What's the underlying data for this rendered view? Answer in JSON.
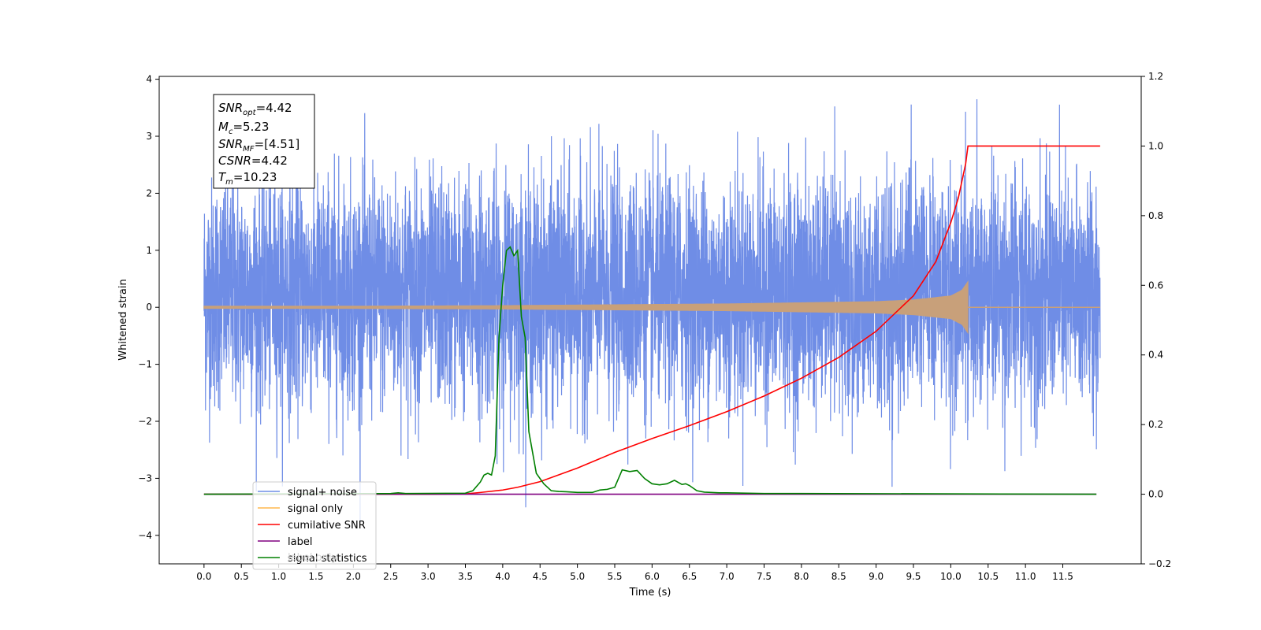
{
  "chart_data": {
    "type": "line",
    "xlabel": "Time (s)",
    "ylabel": "Whitened strain",
    "xlim": [
      -0.6,
      12.55
    ],
    "ylim": [
      -4.5,
      4.05
    ],
    "y2lim": [
      -0.2,
      1.2
    ],
    "xticks": [
      "0.0",
      "0.5",
      "1.0",
      "1.5",
      "2.0",
      "2.5",
      "3.0",
      "3.5",
      "4.0",
      "4.5",
      "5.0",
      "5.5",
      "6.0",
      "6.5",
      "7.0",
      "7.5",
      "8.0",
      "8.5",
      "9.0",
      "9.5",
      "10.0",
      "10.5",
      "11.0",
      "11.5"
    ],
    "yticks": [
      "4",
      "3",
      "2",
      "1",
      "0",
      "−1",
      "−2",
      "−3",
      "−4"
    ],
    "y2ticks": [
      "1.2",
      "1.0",
      "0.8",
      "0.6",
      "0.4",
      "0.2",
      "0.0",
      "−0.2"
    ],
    "annotation": {
      "snr_opt": "4.42",
      "mc": "5.23",
      "snr_mf": "[4.51]",
      "csnr": "4.42",
      "tm": "10.23"
    },
    "legend_position": "lower-left",
    "legend": [
      {
        "label": "signal+ noise",
        "color": "#6f8de6"
      },
      {
        "label": "signal only",
        "color": "#ffb74d"
      },
      {
        "label": "cumilative SNR",
        "color": "#ff0000"
      },
      {
        "label": "label",
        "color": "#800080"
      },
      {
        "label": "signal statistics",
        "color": "#008000"
      }
    ],
    "hidden_legend_label": "label only",
    "series": [
      {
        "name": "signal+ noise",
        "axis": "left",
        "color": "#6f8de6",
        "t_start": 0.0,
        "t_end": 12.0,
        "amplitude_range": [
          -4.1,
          3.65
        ]
      },
      {
        "name": "signal only",
        "axis": "left",
        "color": "#c8a07a",
        "t_merger": 10.23,
        "envelope": {
          "x": [
            0.0,
            2.0,
            4.0,
            6.0,
            7.0,
            8.0,
            9.0,
            9.5,
            10.0,
            10.15,
            10.23
          ],
          "y": [
            0.02,
            0.02,
            0.03,
            0.05,
            0.06,
            0.08,
            0.1,
            0.13,
            0.2,
            0.3,
            0.45
          ]
        }
      },
      {
        "name": "cumilative SNR",
        "axis": "right",
        "color": "#ff0000",
        "x": [
          0.0,
          3.0,
          3.5,
          3.7,
          4.0,
          4.2,
          4.5,
          5.0,
          5.5,
          6.0,
          6.5,
          7.0,
          7.5,
          8.0,
          8.5,
          9.0,
          9.5,
          9.8,
          10.0,
          10.1,
          10.2,
          10.23,
          12.0
        ],
        "y": [
          0.0,
          0.0,
          0.001,
          0.005,
          0.012,
          0.02,
          0.036,
          0.075,
          0.12,
          0.16,
          0.197,
          0.237,
          0.282,
          0.333,
          0.393,
          0.468,
          0.57,
          0.668,
          0.78,
          0.85,
          0.95,
          1.0,
          1.0
        ]
      },
      {
        "name": "label",
        "axis": "right",
        "color": "#800080",
        "x": [
          0.0,
          11.95
        ],
        "y": [
          0.0,
          0.0
        ]
      },
      {
        "name": "signal statistics",
        "axis": "right",
        "color": "#008000",
        "x": [
          0.0,
          2.5,
          2.6,
          2.7,
          3.5,
          3.6,
          3.7,
          3.75,
          3.8,
          3.85,
          3.9,
          3.95,
          4.0,
          4.05,
          4.1,
          4.15,
          4.2,
          4.25,
          4.3,
          4.35,
          4.45,
          4.55,
          4.65,
          4.75,
          4.85,
          5.0,
          5.2,
          5.3,
          5.4,
          5.5,
          5.6,
          5.7,
          5.8,
          5.9,
          6.0,
          6.1,
          6.2,
          6.3,
          6.4,
          6.45,
          6.5,
          6.6,
          6.7,
          6.9,
          7.0,
          7.5,
          8.0,
          11.95
        ],
        "y": [
          0.0,
          0.002,
          0.004,
          0.002,
          0.003,
          0.01,
          0.035,
          0.055,
          0.06,
          0.055,
          0.11,
          0.45,
          0.6,
          0.7,
          0.71,
          0.685,
          0.7,
          0.51,
          0.45,
          0.18,
          0.06,
          0.03,
          0.01,
          0.008,
          0.007,
          0.005,
          0.005,
          0.012,
          0.014,
          0.02,
          0.07,
          0.065,
          0.068,
          0.045,
          0.03,
          0.027,
          0.03,
          0.04,
          0.028,
          0.03,
          0.025,
          0.01,
          0.006,
          0.004,
          0.004,
          0.002,
          0.002,
          0.0
        ]
      }
    ]
  }
}
